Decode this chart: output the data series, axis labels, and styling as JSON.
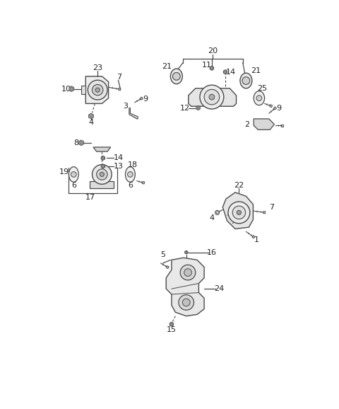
{
  "bg_color": "#ffffff",
  "lc": "#4a4a4a",
  "figsize": [
    4.8,
    5.78
  ],
  "dpi": 100,
  "xlim": [
    0,
    480
  ],
  "ylim": [
    0,
    578
  ]
}
